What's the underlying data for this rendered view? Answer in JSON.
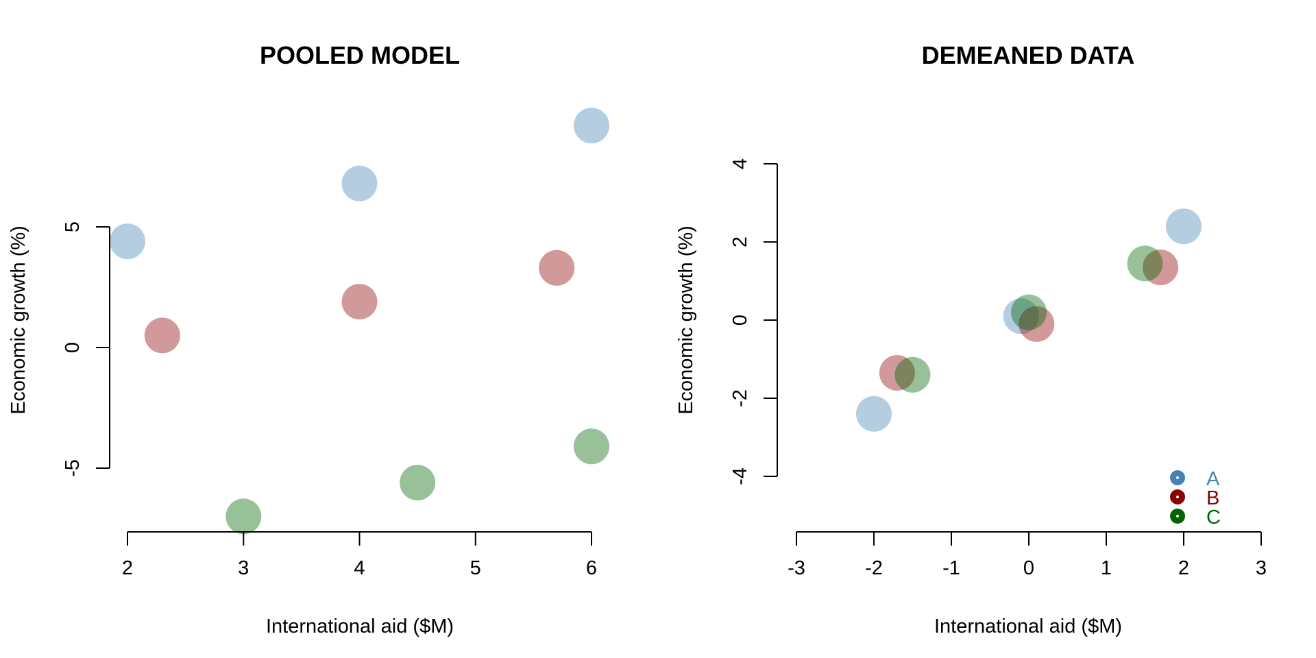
{
  "chart_data": [
    {
      "type": "scatter",
      "title": "POOLED MODEL",
      "xlabel": "International aid ($M)",
      "ylabel": "Economic growth (%)",
      "xlim": [
        2,
        6
      ],
      "ylim": [
        -7.5,
        9.5
      ],
      "xticks": [
        2,
        3,
        4,
        5,
        6
      ],
      "yticks": [
        -5,
        0,
        5
      ],
      "series": [
        {
          "color": "#4682B4",
          "points": [
            [
              2,
              4.4
            ],
            [
              4,
              6.8
            ],
            [
              6,
              9.2
            ]
          ]
        },
        {
          "color": "#8B0000",
          "points": [
            [
              2.3,
              0.5
            ],
            [
              4,
              1.9
            ],
            [
              5.7,
              3.3
            ]
          ]
        },
        {
          "color": "#006400",
          "points": [
            [
              3,
              -7.0
            ],
            [
              4.5,
              -5.6
            ],
            [
              6,
              -4.1
            ]
          ]
        }
      ]
    },
    {
      "type": "scatter",
      "title": "DEMEANED DATA",
      "xlabel": "International aid ($M)",
      "ylabel": "Economic growth (%)",
      "xlim": [
        -3,
        3
      ],
      "ylim": [
        -4,
        4
      ],
      "xticks": [
        -3,
        -2,
        -1,
        0,
        1,
        2,
        3
      ],
      "yticks": [
        -4,
        -2,
        0,
        2,
        4
      ],
      "legend": {
        "position": "bottom-right"
      },
      "series": [
        {
          "name": "A",
          "color": "#4682B4",
          "points": [
            [
              -2,
              -2.4
            ],
            [
              -0.1,
              0.1
            ],
            [
              2,
              2.4
            ]
          ]
        },
        {
          "name": "B",
          "color": "#8B0000",
          "points": [
            [
              -1.7,
              -1.35
            ],
            [
              0.1,
              -0.1
            ],
            [
              1.7,
              1.35
            ]
          ]
        },
        {
          "name": "C",
          "color": "#006400",
          "points": [
            [
              -1.5,
              -1.4
            ],
            [
              0,
              0.2
            ],
            [
              1.5,
              1.45
            ]
          ]
        }
      ]
    }
  ]
}
